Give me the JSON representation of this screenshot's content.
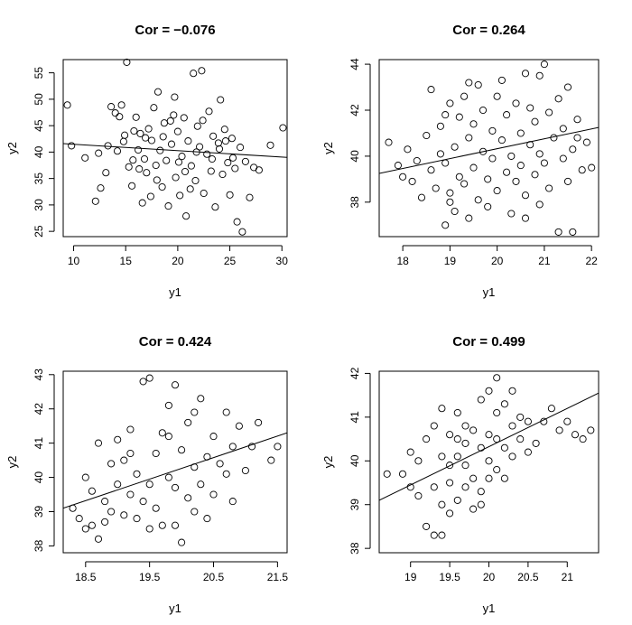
{
  "chart_data": [
    {
      "type": "scatter",
      "title": "Cor =  −0.076",
      "xlabel": "y1",
      "ylabel": "y2",
      "xlim": [
        9,
        30.5
      ],
      "ylim": [
        24,
        57.5
      ],
      "xticks": [
        10,
        15,
        20,
        25,
        30
      ],
      "yticks": [
        25,
        30,
        35,
        40,
        45,
        50,
        55
      ],
      "fit_line": {
        "x": [
          9,
          30.5
        ],
        "y": [
          41.6,
          39.0
        ]
      },
      "points": [
        [
          9.4,
          48.9
        ],
        [
          9.8,
          41.2
        ],
        [
          11.1,
          38.9
        ],
        [
          12.1,
          30.7
        ],
        [
          12.4,
          39.8
        ],
        [
          12.6,
          33.2
        ],
        [
          13.1,
          36.1
        ],
        [
          13.3,
          41.2
        ],
        [
          13.6,
          48.6
        ],
        [
          14.0,
          47.4
        ],
        [
          14.2,
          40.2
        ],
        [
          14.4,
          46.7
        ],
        [
          14.6,
          48.9
        ],
        [
          14.9,
          43.2
        ],
        [
          15.1,
          57.0
        ],
        [
          15.3,
          37.2
        ],
        [
          15.6,
          33.6
        ],
        [
          15.8,
          44.0
        ],
        [
          16.0,
          46.6
        ],
        [
          16.2,
          40.4
        ],
        [
          16.4,
          43.5
        ],
        [
          16.6,
          30.4
        ],
        [
          16.8,
          38.7
        ],
        [
          17.0,
          36.1
        ],
        [
          17.2,
          44.4
        ],
        [
          17.5,
          42.2
        ],
        [
          17.7,
          48.4
        ],
        [
          17.9,
          37.5
        ],
        [
          18.1,
          51.4
        ],
        [
          18.3,
          40.3
        ],
        [
          18.5,
          33.4
        ],
        [
          18.7,
          45.5
        ],
        [
          18.9,
          38.4
        ],
        [
          19.1,
          29.8
        ],
        [
          19.4,
          41.5
        ],
        [
          19.6,
          47.0
        ],
        [
          19.8,
          35.2
        ],
        [
          20.0,
          43.9
        ],
        [
          20.2,
          31.8
        ],
        [
          20.4,
          39.2
        ],
        [
          20.6,
          46.5
        ],
        [
          20.8,
          27.9
        ],
        [
          21.0,
          42.1
        ],
        [
          21.3,
          37.4
        ],
        [
          21.5,
          54.9
        ],
        [
          21.7,
          34.6
        ],
        [
          21.9,
          44.9
        ],
        [
          22.1,
          41.0
        ],
        [
          22.3,
          55.4
        ],
        [
          22.5,
          32.2
        ],
        [
          22.8,
          39.6
        ],
        [
          23.0,
          47.7
        ],
        [
          23.2,
          36.4
        ],
        [
          23.4,
          43.0
        ],
        [
          23.6,
          29.6
        ],
        [
          23.9,
          41.7
        ],
        [
          24.1,
          49.9
        ],
        [
          24.3,
          35.8
        ],
        [
          24.5,
          44.3
        ],
        [
          24.8,
          38.0
        ],
        [
          25.0,
          31.9
        ],
        [
          25.2,
          42.6
        ],
        [
          25.5,
          36.9
        ],
        [
          25.7,
          26.8
        ],
        [
          26.0,
          40.9
        ],
        [
          26.2,
          24.9
        ],
        [
          26.5,
          38.2
        ],
        [
          26.9,
          31.4
        ],
        [
          27.3,
          37.1
        ],
        [
          27.8,
          36.6
        ],
        [
          28.9,
          41.3
        ],
        [
          30.1,
          44.6
        ],
        [
          15.7,
          38.5
        ],
        [
          16.9,
          42.7
        ],
        [
          18.0,
          34.7
        ],
        [
          19.3,
          45.9
        ],
        [
          20.7,
          36.3
        ],
        [
          21.8,
          40.0
        ],
        [
          23.3,
          38.7
        ],
        [
          24.6,
          42.1
        ],
        [
          17.4,
          31.6
        ],
        [
          19.7,
          50.4
        ],
        [
          22.4,
          46.0
        ],
        [
          20.1,
          38.1
        ],
        [
          18.6,
          42.9
        ],
        [
          21.2,
          33.0
        ],
        [
          16.3,
          36.8
        ],
        [
          24.0,
          40.6
        ],
        [
          14.8,
          42.0
        ],
        [
          25.3,
          38.9
        ]
      ]
    },
    {
      "type": "scatter",
      "title": "Cor =  0.264",
      "xlabel": "y1",
      "ylabel": "y2",
      "xlim": [
        17.5,
        22.15
      ],
      "ylim": [
        36.5,
        44.2
      ],
      "xticks": [
        18,
        19,
        20,
        21,
        22
      ],
      "yticks": [
        38,
        40,
        42,
        44
      ],
      "fit_line": {
        "x": [
          17.5,
          22.15
        ],
        "y": [
          39.25,
          41.25
        ]
      },
      "points": [
        [
          17.7,
          40.6
        ],
        [
          17.9,
          39.6
        ],
        [
          18.0,
          39.1
        ],
        [
          18.1,
          40.3
        ],
        [
          18.2,
          38.9
        ],
        [
          18.3,
          39.8
        ],
        [
          18.4,
          38.2
        ],
        [
          18.5,
          40.9
        ],
        [
          18.6,
          39.4
        ],
        [
          18.6,
          42.9
        ],
        [
          18.7,
          38.6
        ],
        [
          18.8,
          40.1
        ],
        [
          18.8,
          41.3
        ],
        [
          18.9,
          37.0
        ],
        [
          18.9,
          39.7
        ],
        [
          19.0,
          42.3
        ],
        [
          19.0,
          38.4
        ],
        [
          19.1,
          40.4
        ],
        [
          19.1,
          37.6
        ],
        [
          19.2,
          41.7
        ],
        [
          19.2,
          39.1
        ],
        [
          19.3,
          42.6
        ],
        [
          19.3,
          38.8
        ],
        [
          19.4,
          40.8
        ],
        [
          19.4,
          37.3
        ],
        [
          19.5,
          41.4
        ],
        [
          19.5,
          39.5
        ],
        [
          19.6,
          43.1
        ],
        [
          19.6,
          38.1
        ],
        [
          19.7,
          40.2
        ],
        [
          19.7,
          42.0
        ],
        [
          19.8,
          39.0
        ],
        [
          19.8,
          37.8
        ],
        [
          19.9,
          41.1
        ],
        [
          19.9,
          39.9
        ],
        [
          20.0,
          42.6
        ],
        [
          20.0,
          38.5
        ],
        [
          20.1,
          40.7
        ],
        [
          20.1,
          43.3
        ],
        [
          20.2,
          39.3
        ],
        [
          20.2,
          41.8
        ],
        [
          20.3,
          37.5
        ],
        [
          20.3,
          40.0
        ],
        [
          20.4,
          42.3
        ],
        [
          20.4,
          38.9
        ],
        [
          20.5,
          41.0
        ],
        [
          20.5,
          39.6
        ],
        [
          20.6,
          43.6
        ],
        [
          20.6,
          38.3
        ],
        [
          20.7,
          40.5
        ],
        [
          20.7,
          42.1
        ],
        [
          20.8,
          39.2
        ],
        [
          20.8,
          41.5
        ],
        [
          20.9,
          37.9
        ],
        [
          20.9,
          40.1
        ],
        [
          21.0,
          44.0
        ],
        [
          21.0,
          39.7
        ],
        [
          21.1,
          41.9
        ],
        [
          21.1,
          38.6
        ],
        [
          21.2,
          40.8
        ],
        [
          21.3,
          36.7
        ],
        [
          21.3,
          42.5
        ],
        [
          21.4,
          39.9
        ],
        [
          21.4,
          41.2
        ],
        [
          21.5,
          38.9
        ],
        [
          21.5,
          43.0
        ],
        [
          21.6,
          36.7
        ],
        [
          21.6,
          40.3
        ],
        [
          21.7,
          41.6
        ],
        [
          21.8,
          39.4
        ],
        [
          21.9,
          40.6
        ],
        [
          22.0,
          39.5
        ],
        [
          19.4,
          43.2
        ],
        [
          20.9,
          43.5
        ],
        [
          18.9,
          41.8
        ],
        [
          20.6,
          37.3
        ],
        [
          19.0,
          38.0
        ],
        [
          21.7,
          40.8
        ]
      ]
    },
    {
      "type": "scatter",
      "title": "Cor =  0.424",
      "xlabel": "y1",
      "ylabel": "y2",
      "xlim": [
        18.15,
        21.65
      ],
      "ylim": [
        37.8,
        43.1
      ],
      "xticks": [
        18.5,
        19.5,
        20.5,
        21.5
      ],
      "yticks": [
        38,
        39,
        40,
        41,
        42,
        43
      ],
      "fit_line": {
        "x": [
          18.15,
          21.65
        ],
        "y": [
          39.1,
          41.3
        ]
      },
      "points": [
        [
          18.3,
          39.1
        ],
        [
          18.4,
          38.8
        ],
        [
          18.5,
          40.0
        ],
        [
          18.5,
          38.5
        ],
        [
          18.6,
          39.6
        ],
        [
          18.6,
          38.6
        ],
        [
          18.7,
          38.2
        ],
        [
          18.7,
          41.0
        ],
        [
          18.8,
          39.3
        ],
        [
          18.8,
          38.7
        ],
        [
          18.9,
          40.4
        ],
        [
          18.9,
          39.0
        ],
        [
          19.0,
          39.8
        ],
        [
          19.0,
          41.1
        ],
        [
          19.1,
          38.9
        ],
        [
          19.1,
          40.5
        ],
        [
          19.2,
          39.5
        ],
        [
          19.2,
          41.4
        ],
        [
          19.3,
          38.8
        ],
        [
          19.3,
          40.1
        ],
        [
          19.4,
          39.3
        ],
        [
          19.4,
          42.8
        ],
        [
          19.5,
          42.9
        ],
        [
          19.5,
          38.5
        ],
        [
          19.6,
          40.7
        ],
        [
          19.6,
          39.1
        ],
        [
          19.7,
          41.3
        ],
        [
          19.7,
          38.6
        ],
        [
          19.8,
          40.0
        ],
        [
          19.8,
          42.1
        ],
        [
          19.9,
          39.7
        ],
        [
          19.9,
          42.7
        ],
        [
          20.0,
          40.8
        ],
        [
          20.0,
          38.1
        ],
        [
          20.1,
          41.6
        ],
        [
          20.1,
          39.4
        ],
        [
          20.2,
          40.3
        ],
        [
          20.2,
          41.9
        ],
        [
          20.3,
          39.8
        ],
        [
          20.3,
          42.3
        ],
        [
          20.4,
          40.6
        ],
        [
          20.4,
          38.8
        ],
        [
          20.5,
          41.2
        ],
        [
          20.5,
          39.5
        ],
        [
          20.6,
          40.4
        ],
        [
          20.7,
          41.9
        ],
        [
          20.8,
          39.3
        ],
        [
          20.8,
          40.9
        ],
        [
          20.9,
          41.5
        ],
        [
          21.0,
          40.2
        ],
        [
          21.1,
          40.9
        ],
        [
          21.2,
          41.6
        ],
        [
          21.4,
          40.5
        ],
        [
          21.5,
          40.9
        ],
        [
          19.9,
          38.6
        ],
        [
          19.5,
          39.8
        ],
        [
          20.7,
          40.1
        ],
        [
          19.2,
          40.7
        ],
        [
          20.2,
          39.0
        ],
        [
          19.8,
          41.2
        ]
      ]
    },
    {
      "type": "scatter",
      "title": "Cor =  0.499",
      "xlabel": "y1",
      "ylabel": "y2",
      "xlim": [
        18.6,
        21.4
      ],
      "ylim": [
        37.9,
        42.05
      ],
      "xticks": [
        19.0,
        19.5,
        20.0,
        20.5,
        21.0
      ],
      "yticks": [
        38,
        39,
        40,
        41,
        42
      ],
      "fit_line": {
        "x": [
          18.6,
          21.4
        ],
        "y": [
          39.1,
          41.55
        ]
      },
      "points": [
        [
          18.7,
          39.7
        ],
        [
          18.9,
          39.7
        ],
        [
          19.0,
          39.4
        ],
        [
          19.0,
          40.2
        ],
        [
          19.1,
          39.2
        ],
        [
          19.1,
          40.0
        ],
        [
          19.2,
          38.5
        ],
        [
          19.2,
          40.5
        ],
        [
          19.3,
          38.3
        ],
        [
          19.3,
          39.4
        ],
        [
          19.3,
          40.8
        ],
        [
          19.4,
          38.3
        ],
        [
          19.4,
          39.0
        ],
        [
          19.4,
          40.1
        ],
        [
          19.4,
          41.2
        ],
        [
          19.5,
          38.8
        ],
        [
          19.5,
          39.5
        ],
        [
          19.5,
          40.6
        ],
        [
          19.6,
          39.1
        ],
        [
          19.6,
          40.1
        ],
        [
          19.6,
          41.1
        ],
        [
          19.7,
          39.4
        ],
        [
          19.7,
          40.4
        ],
        [
          19.7,
          39.9
        ],
        [
          19.8,
          38.9
        ],
        [
          19.8,
          40.7
        ],
        [
          19.8,
          39.6
        ],
        [
          19.9,
          40.3
        ],
        [
          19.9,
          41.4
        ],
        [
          19.9,
          39.3
        ],
        [
          20.0,
          40.0
        ],
        [
          20.0,
          41.6
        ],
        [
          20.0,
          39.6
        ],
        [
          20.1,
          40.5
        ],
        [
          20.1,
          41.1
        ],
        [
          20.1,
          41.9
        ],
        [
          20.1,
          39.8
        ],
        [
          20.2,
          40.3
        ],
        [
          20.2,
          41.3
        ],
        [
          20.2,
          39.6
        ],
        [
          20.3,
          40.8
        ],
        [
          20.3,
          40.1
        ],
        [
          20.4,
          40.5
        ],
        [
          20.4,
          41.0
        ],
        [
          20.5,
          40.2
        ],
        [
          20.5,
          40.9
        ],
        [
          20.6,
          40.4
        ],
        [
          20.7,
          40.9
        ],
        [
          20.8,
          41.2
        ],
        [
          20.9,
          40.7
        ],
        [
          21.0,
          40.9
        ],
        [
          21.1,
          40.6
        ],
        [
          21.2,
          40.5
        ],
        [
          21.3,
          40.7
        ],
        [
          19.5,
          39.9
        ],
        [
          20.0,
          40.6
        ],
        [
          19.7,
          40.8
        ],
        [
          20.3,
          41.6
        ],
        [
          19.9,
          39.0
        ],
        [
          19.6,
          40.5
        ]
      ]
    }
  ]
}
